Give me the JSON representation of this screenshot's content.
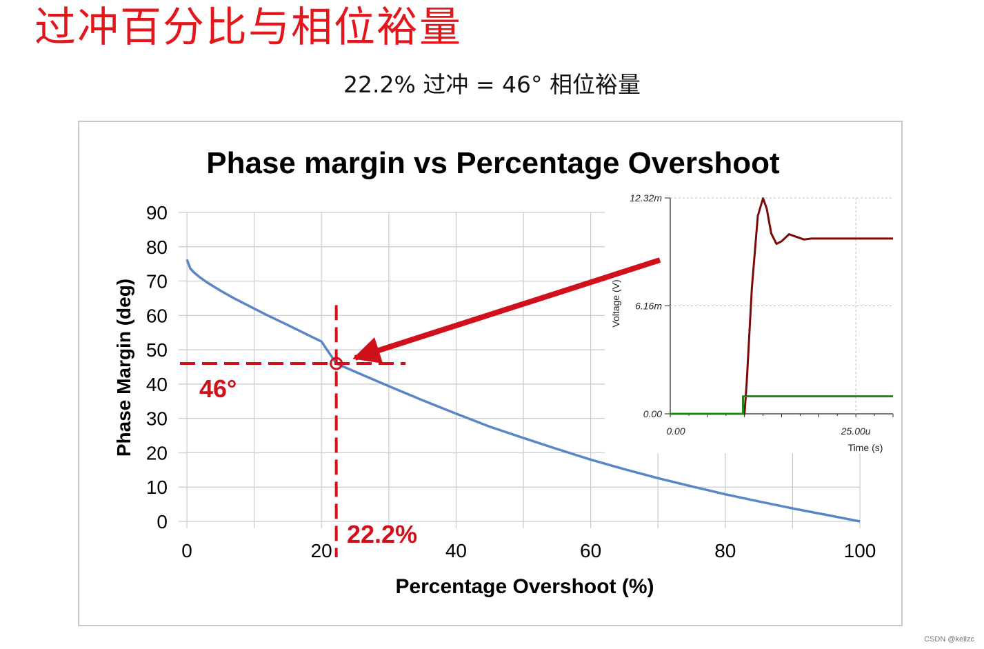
{
  "slide": {
    "title": "过冲百分比与相位裕量",
    "subtitle": "22.2% 过冲 = 46° 相位裕量",
    "footer": "CSDN @keilzc",
    "colors": {
      "title": "#e3161c",
      "annotation": "#d0101a",
      "curve": "#5a86c5"
    }
  },
  "chart_data": [
    {
      "type": "line",
      "title": "Phase margin vs Percentage Overshoot",
      "xlabel": "Percentage Overshoot (%)",
      "ylabel": "Phase Margin (deg)",
      "xlim": [
        0,
        100
      ],
      "ylim": [
        0,
        90
      ],
      "x_ticks": [
        "0",
        "20",
        "40",
        "60",
        "80",
        "100"
      ],
      "y_ticks": [
        "0",
        "10",
        "20",
        "30",
        "40",
        "50",
        "60",
        "70",
        "80",
        "90"
      ],
      "grid": true,
      "series": [
        {
          "color": "#5a86c5",
          "x": [
            0,
            0.5,
            1,
            2,
            3,
            5,
            7,
            10,
            12,
            15,
            18,
            20,
            22.2,
            25,
            30,
            35,
            40,
            45,
            50,
            55,
            60,
            65,
            70,
            75,
            80,
            85,
            90,
            95,
            100
          ],
          "y": [
            76.3,
            73.7,
            72.6,
            71.0,
            69.6,
            67.2,
            65.0,
            62.0,
            60.0,
            57.2,
            54.3,
            52.4,
            46.0,
            43.6,
            39.4,
            35.3,
            31.4,
            27.6,
            24.3,
            21.1,
            18.0,
            15.2,
            12.6,
            10.2,
            7.9,
            5.8,
            3.8,
            1.9,
            0
          ]
        }
      ],
      "annotations": {
        "point": {
          "x": 22.2,
          "y": 46
        },
        "y_label": "46°",
        "x_label": "22.2%"
      }
    },
    {
      "type": "line",
      "xlabel": "Time (s)",
      "ylabel": "Voltage (V)",
      "y_ticks": [
        "0.00",
        "6.16m",
        "12.32m"
      ],
      "x_ticks": [
        "0.00",
        "25.00u"
      ],
      "xlim": [
        0,
        30
      ],
      "ylim": [
        0,
        12.32
      ],
      "grid": true,
      "series": [
        {
          "color": "#7a0a0a",
          "x": [
            0,
            10.0,
            10.3,
            11.0,
            11.8,
            12.5,
            13.0,
            13.6,
            14.3,
            15.0,
            16.0,
            17.0,
            18.0,
            19.0,
            20.0,
            22.0,
            25.0,
            30.0
          ],
          "y": [
            0,
            0,
            1.8,
            7.2,
            11.3,
            12.3,
            11.7,
            10.3,
            9.7,
            9.85,
            10.25,
            10.1,
            9.95,
            10.0,
            10.0,
            10.0,
            10.0,
            10.0
          ]
        },
        {
          "color": "#1a8a1a",
          "x": [
            0,
            9.8,
            9.8,
            30.0
          ],
          "y": [
            0,
            0,
            1.0,
            1.0
          ]
        }
      ]
    }
  ]
}
